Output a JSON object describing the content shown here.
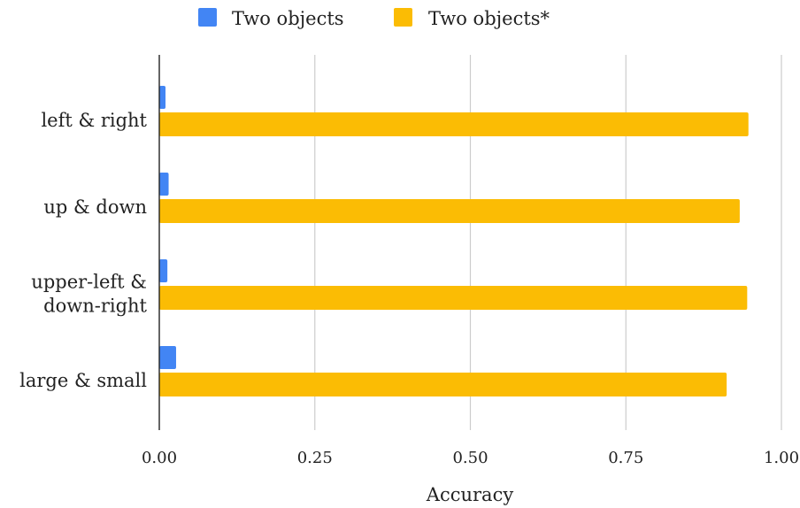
{
  "chart_data": {
    "type": "bar",
    "orientation": "horizontal",
    "categories": [
      [
        "left & right"
      ],
      [
        "up & down"
      ],
      [
        "upper-left &",
        "down-right"
      ],
      [
        "large & small"
      ]
    ],
    "series": [
      {
        "name": "Two objects",
        "color": "#4285F4",
        "values": [
          0.01,
          0.015,
          0.013,
          0.027
        ]
      },
      {
        "name": "Two objects*",
        "color": "#FBBC04",
        "values": [
          0.947,
          0.933,
          0.945,
          0.912
        ]
      }
    ],
    "xlabel": "Accuracy",
    "ylabel": "",
    "xlim": [
      0,
      1
    ],
    "xticks": [
      "0.00",
      "0.25",
      "0.50",
      "0.75",
      "1.00"
    ],
    "grid": "vertical",
    "legend_position": "top"
  }
}
